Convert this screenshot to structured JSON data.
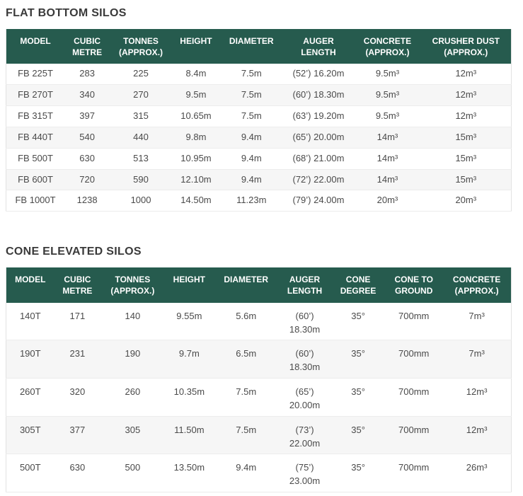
{
  "colors": {
    "header_bg": "#265b4e",
    "header_text": "#ffffff",
    "stripe_bg": "#f6f6f6",
    "body_text": "#4a4a4a",
    "title_text": "#3a3a3a",
    "border": "#e2e2e2"
  },
  "tables": [
    {
      "title": "FLAT BOTTOM SILOS",
      "columns": [
        "MODEL",
        "CUBIC\nMETRE",
        "TONNES\n(APPROX.)",
        "HEIGHT",
        "DIAMETER",
        "AUGER\nLENGTH",
        "CONCRETE\n(APPROX.)",
        "CRUSHER DUST\n(APPROX.)"
      ],
      "rows": [
        [
          "FB 225T",
          "283",
          "225",
          "8.4m",
          "7.5m",
          "(52’) 16.20m",
          "9.5m³",
          "12m³"
        ],
        [
          "FB 270T",
          "340",
          "270",
          "9.5m",
          "7.5m",
          "(60’) 18.30m",
          "9.5m³",
          "12m³"
        ],
        [
          "FB 315T",
          "397",
          "315",
          "10.65m",
          "7.5m",
          "(63’) 19.20m",
          "9.5m³",
          "12m³"
        ],
        [
          "FB 440T",
          "540",
          "440",
          "9.8m",
          "9.4m",
          "(65’) 20.00m",
          "14m³",
          "15m³"
        ],
        [
          "FB 500T",
          "630",
          "513",
          "10.95m",
          "9.4m",
          "(68’) 21.00m",
          "14m³",
          "15m³"
        ],
        [
          "FB 600T",
          "720",
          "590",
          "12.10m",
          "9.4m",
          "(72’) 22.00m",
          "14m³",
          "15m³"
        ],
        [
          "FB 1000T",
          "1238",
          "1000",
          "14.50m",
          "11.23m",
          "(79’) 24.00m",
          "20m³",
          "20m³"
        ]
      ]
    },
    {
      "title": "CONE ELEVATED SILOS",
      "columns": [
        "MODEL",
        "CUBIC\nMETRE",
        "TONNES\n(APPROX.)",
        "HEIGHT",
        "DIAMETER",
        "AUGER\nLENGTH",
        "CONE\nDEGREE",
        "CONE TO\nGROUND",
        "CONCRETE\n(APPROX.)"
      ],
      "rows": [
        [
          "140T",
          "171",
          "140",
          "9.55m",
          "5.6m",
          "(60’)\n18.30m",
          "35°",
          "700mm",
          "7m³"
        ],
        [
          "190T",
          "231",
          "190",
          "9.7m",
          "6.5m",
          "(60’)\n18.30m",
          "35°",
          "700mm",
          "7m³"
        ],
        [
          "260T",
          "320",
          "260",
          "10.35m",
          "7.5m",
          "(65’)\n20.00m",
          "35°",
          "700mm",
          "12m³"
        ],
        [
          "305T",
          "377",
          "305",
          "11.50m",
          "7.5m",
          "(73’)\n22.00m",
          "35°",
          "700mm",
          "12m³"
        ],
        [
          "500T",
          "630",
          "500",
          "13.50m",
          "9.4m",
          "(75’)\n23.00m",
          "35°",
          "700mm",
          "26m³"
        ]
      ]
    }
  ]
}
